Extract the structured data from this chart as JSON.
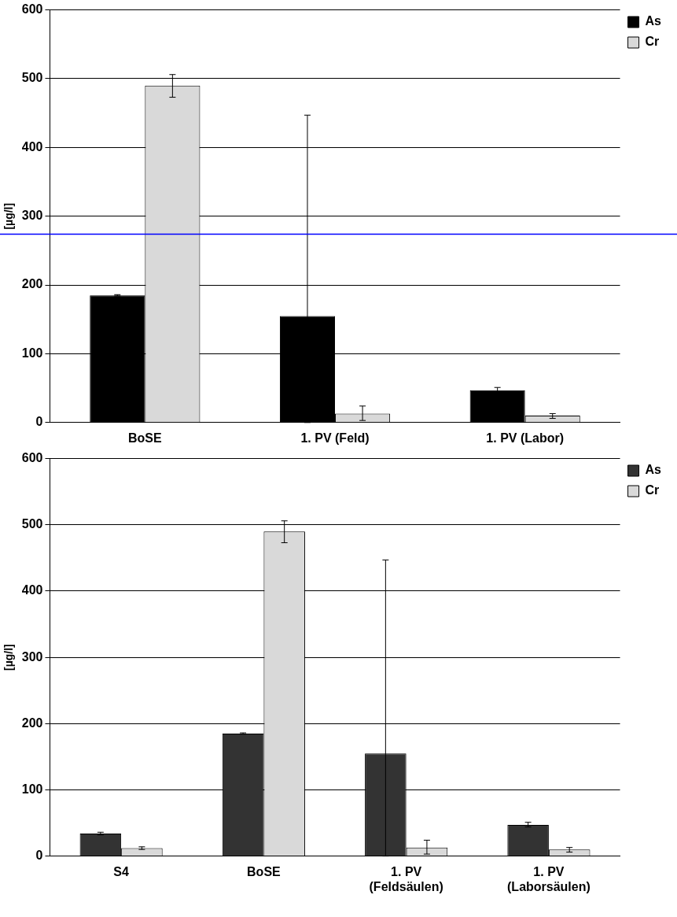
{
  "chart_data": [
    {
      "type": "bar",
      "ylabel": "[µg/l]",
      "categories": [
        "BoSE",
        "1. PV (Feld)",
        "1. PV (Labor)"
      ],
      "series": [
        {
          "name": "As",
          "color": "#000000",
          "values": [
            185,
            155,
            47
          ],
          "errors": [
            [
              184,
              186
            ],
            [
              0,
              447
            ],
            [
              44,
              51
            ]
          ]
        },
        {
          "name": "Cr",
          "color": "#d9d9d9",
          "values": [
            490,
            13,
            10
          ],
          "errors": [
            [
              473,
              506
            ],
            [
              3,
              24
            ],
            [
              6,
              13
            ]
          ]
        }
      ],
      "ylim": [
        0,
        600
      ],
      "yticks": [
        0,
        100,
        200,
        300,
        400,
        500,
        600
      ],
      "grid": "y",
      "legend": "top right",
      "ref_lines": [
        {
          "axis": "y",
          "value": 274,
          "color": "#0000ff"
        }
      ]
    },
    {
      "type": "bar",
      "ylabel": "[µg/l]",
      "categories": [
        "S4",
        "BoSE",
        "1. PV\n(Feldsäulen)",
        "1. PV\n(Laborsäulen)"
      ],
      "series": [
        {
          "name": "As",
          "color": "#333333",
          "values": [
            34,
            185,
            155,
            47
          ],
          "errors": [
            [
              32,
              36
            ],
            [
              184,
              186
            ],
            [
              0,
              447
            ],
            [
              44,
              51
            ]
          ]
        },
        {
          "name": "Cr",
          "color": "#d9d9d9",
          "values": [
            12,
            490,
            13,
            10
          ],
          "errors": [
            [
              10,
              14
            ],
            [
              473,
              506
            ],
            [
              3,
              24
            ],
            [
              6,
              13
            ]
          ]
        }
      ],
      "ylim": [
        0,
        600
      ],
      "yticks": [
        0,
        100,
        200,
        300,
        400,
        500,
        600
      ],
      "grid": "y",
      "legend": "top right"
    }
  ]
}
